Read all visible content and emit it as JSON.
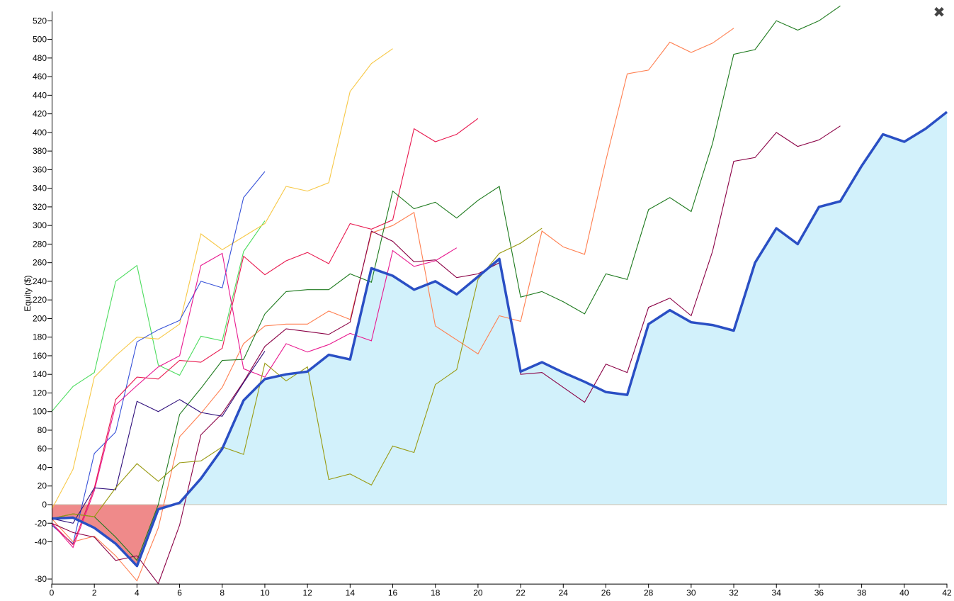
{
  "close_icon": "✖",
  "chart_data": {
    "type": "line",
    "title": "",
    "xlabel": "",
    "ylabel": "Equity ($)",
    "xlim": [
      0,
      42
    ],
    "ylim": [
      -85,
      530
    ],
    "x_ticks": [
      0,
      2,
      4,
      6,
      8,
      10,
      12,
      14,
      16,
      18,
      20,
      22,
      24,
      26,
      28,
      30,
      32,
      34,
      36,
      38,
      40,
      42
    ],
    "x_tick_labels": [
      "0",
      "2",
      "4",
      "6",
      "8",
      "10",
      "12",
      "14",
      "16",
      "18",
      "20",
      "22",
      "24",
      "26",
      "28",
      "30",
      "32",
      "34",
      "36",
      "38",
      "40",
      "42"
    ],
    "y_ticks": [
      -80,
      -40,
      -20,
      0,
      20,
      40,
      60,
      80,
      100,
      120,
      140,
      160,
      180,
      200,
      220,
      240,
      260,
      280,
      300,
      320,
      340,
      360,
      380,
      400,
      420,
      440,
      460,
      480,
      500,
      520
    ],
    "y_tick_labels": [
      "-80",
      "-40",
      "-20",
      "0",
      "20",
      "40",
      "60",
      "80",
      "100",
      "120",
      "140",
      "160",
      "180",
      "200",
      "220",
      "240",
      "260",
      "280",
      "300",
      "320",
      "340",
      "360",
      "380",
      "400",
      "420",
      "440",
      "460",
      "480",
      "500",
      "520"
    ],
    "grid": false,
    "colors": {
      "main_line": "#2a4fc4",
      "positive_fill": "#d2f1fb",
      "negative_fill": "#ef8a8a",
      "zero_line": "#c9bfae"
    },
    "main_series": {
      "x": [
        0,
        1,
        2,
        3,
        4,
        5,
        6,
        7,
        8,
        9,
        10,
        11,
        12,
        13,
        14,
        15,
        16,
        17,
        18,
        19,
        20,
        21,
        22,
        23,
        24,
        25,
        26,
        27,
        28,
        29,
        30,
        31,
        32,
        33,
        34,
        35,
        36,
        37,
        38,
        39,
        40,
        41,
        42
      ],
      "values": [
        -15,
        -14,
        -25,
        -42,
        -66,
        -5,
        2,
        28,
        60,
        112,
        135,
        140,
        143,
        161,
        156,
        254,
        246,
        231,
        240,
        226,
        245,
        264,
        143,
        153,
        142,
        132,
        121,
        118,
        194,
        209,
        196,
        193,
        187,
        260,
        297,
        280,
        320,
        326,
        364,
        398,
        390,
        404,
        422
      ]
    },
    "background_series": [
      {
        "color": "#4cdc5e",
        "x": [
          0,
          1,
          2,
          3,
          4,
          5,
          6,
          7,
          8,
          9,
          10
        ],
        "values": [
          100,
          127,
          142,
          240,
          257,
          150,
          139,
          181,
          176,
          272,
          305
        ]
      },
      {
        "color": "#f7c846",
        "x": [
          0,
          1,
          2,
          3,
          4,
          5,
          6,
          7,
          8,
          9,
          10,
          11,
          12,
          13,
          14,
          15,
          16
        ],
        "values": [
          -5,
          38,
          137,
          160,
          180,
          178,
          194,
          291,
          274,
          288,
          302,
          342,
          337,
          346,
          444,
          474,
          490
        ]
      },
      {
        "color": "#3550d8",
        "x": [
          0,
          1,
          2,
          3,
          4,
          5,
          6,
          7,
          8,
          9,
          10
        ],
        "values": [
          -22,
          -42,
          55,
          78,
          175,
          188,
          198,
          240,
          233,
          330,
          358
        ]
      },
      {
        "color": "#e8194f",
        "x": [
          0,
          1,
          2,
          3,
          4,
          5,
          6,
          7,
          8,
          9,
          10,
          11,
          12,
          13,
          14,
          15,
          16,
          17,
          18,
          19,
          20
        ],
        "values": [
          -20,
          -43,
          18,
          113,
          137,
          135,
          155,
          153,
          168,
          267,
          247,
          262,
          271,
          259,
          302,
          296,
          306,
          404,
          390,
          398,
          415
        ]
      },
      {
        "color": "#ff7f50",
        "x": [
          0,
          1,
          2,
          3,
          4,
          5,
          6,
          7,
          8,
          9,
          10,
          11,
          12,
          13,
          14,
          15,
          16,
          17,
          18,
          19,
          20,
          21,
          22,
          23,
          24,
          25,
          26,
          27,
          28,
          29,
          30,
          31,
          32
        ],
        "values": [
          -15,
          -40,
          -34,
          -55,
          -82,
          -25,
          73,
          98,
          126,
          173,
          192,
          194,
          194,
          208,
          199,
          292,
          300,
          314,
          192,
          177,
          162,
          203,
          197,
          294,
          277,
          269,
          370,
          463,
          467,
          497,
          486,
          496,
          512
        ]
      },
      {
        "color": "#1e7a1e",
        "x": [
          0,
          1,
          2,
          3,
          4,
          5,
          6,
          7,
          8,
          9,
          10,
          11,
          12,
          13,
          14,
          15,
          16,
          17,
          18,
          19,
          20,
          21,
          22,
          23,
          24,
          25,
          26,
          27,
          28,
          29,
          30,
          31,
          32,
          33,
          34,
          35,
          36,
          37
        ],
        "values": [
          -15,
          -10,
          -13,
          -35,
          -60,
          0,
          97,
          125,
          155,
          156,
          205,
          229,
          231,
          231,
          248,
          239,
          337,
          318,
          325,
          308,
          327,
          342,
          223,
          229,
          218,
          205,
          248,
          242,
          317,
          330,
          315,
          388,
          484,
          489,
          520,
          510,
          520,
          536
        ]
      },
      {
        "color": "#8a0045",
        "x": [
          0,
          1,
          2,
          3,
          4,
          5,
          6,
          7,
          8,
          9,
          10,
          11,
          12,
          13,
          14,
          15,
          16,
          17,
          18,
          19,
          20,
          21,
          22,
          23,
          24,
          25,
          26,
          27,
          28,
          29,
          30,
          31,
          32,
          33,
          34,
          35,
          36,
          37
        ],
        "values": [
          -20,
          -30,
          -35,
          -60,
          -55,
          -85,
          -22,
          75,
          98,
          132,
          170,
          189,
          186,
          183,
          196,
          294,
          283,
          261,
          263,
          244,
          248,
          260,
          140,
          142,
          126,
          110,
          151,
          142,
          212,
          222,
          203,
          272,
          369,
          373,
          400,
          385,
          392,
          407
        ]
      },
      {
        "color": "#e8198f",
        "x": [
          0,
          1,
          2,
          3,
          4,
          5,
          6,
          7,
          8,
          9,
          10,
          11,
          12,
          13,
          14,
          15,
          16,
          17,
          18,
          19
        ],
        "values": [
          -20,
          -46,
          15,
          107,
          128,
          148,
          160,
          257,
          270,
          146,
          137,
          173,
          164,
          172,
          184,
          176,
          273,
          256,
          262,
          276
        ]
      },
      {
        "color": "#2e0d7a",
        "x": [
          0,
          1,
          2,
          3,
          4,
          5,
          6,
          7,
          8,
          9,
          10
        ],
        "values": [
          -15,
          -20,
          18,
          16,
          111,
          100,
          113,
          99,
          95,
          131,
          165
        ]
      },
      {
        "color": "#999a12",
        "x": [
          0,
          1,
          2,
          3,
          4,
          5,
          6,
          7,
          8,
          9,
          10,
          11,
          12,
          13,
          14,
          15,
          16,
          17,
          18,
          19,
          20,
          21,
          22,
          23
        ],
        "values": [
          -15,
          -10,
          -13,
          18,
          44,
          25,
          45,
          47,
          62,
          54,
          152,
          133,
          148,
          27,
          33,
          21,
          63,
          56,
          129,
          145,
          242,
          270,
          281,
          297
        ]
      }
    ]
  }
}
